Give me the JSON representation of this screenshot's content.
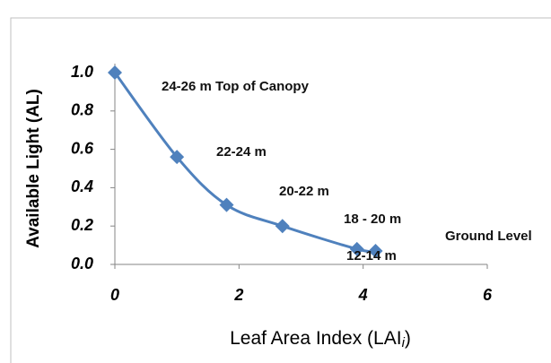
{
  "chart_data": {
    "type": "scatter-line",
    "ylabel": "Available Light (AL)",
    "xlabel": {
      "text": "Leaf Area Index (LAI",
      "subscript": "i",
      "suffix": ")"
    },
    "x": [
      0,
      1,
      1.8,
      2.7,
      3.9,
      4.2
    ],
    "series": [
      {
        "color": "#4f81bd",
        "values": [
          1.0,
          0.56,
          0.31,
          0.2,
          0.08,
          0.07
        ]
      }
    ],
    "xlim": [
      0,
      6
    ],
    "xticks": [
      0,
      2,
      4,
      6
    ],
    "ylim": [
      0,
      1
    ],
    "yticks": [
      {
        "value": 0,
        "label": "0.0"
      },
      0.2,
      0.4,
      0.6,
      0.8,
      {
        "value": 1,
        "label": "1.0"
      }
    ],
    "annotations": [
      "24-26 m Top of Canopy",
      "22-24 m",
      "20-22 m",
      "18 - 20 m",
      "12-14 m",
      "Ground Level"
    ],
    "grid": false
  }
}
